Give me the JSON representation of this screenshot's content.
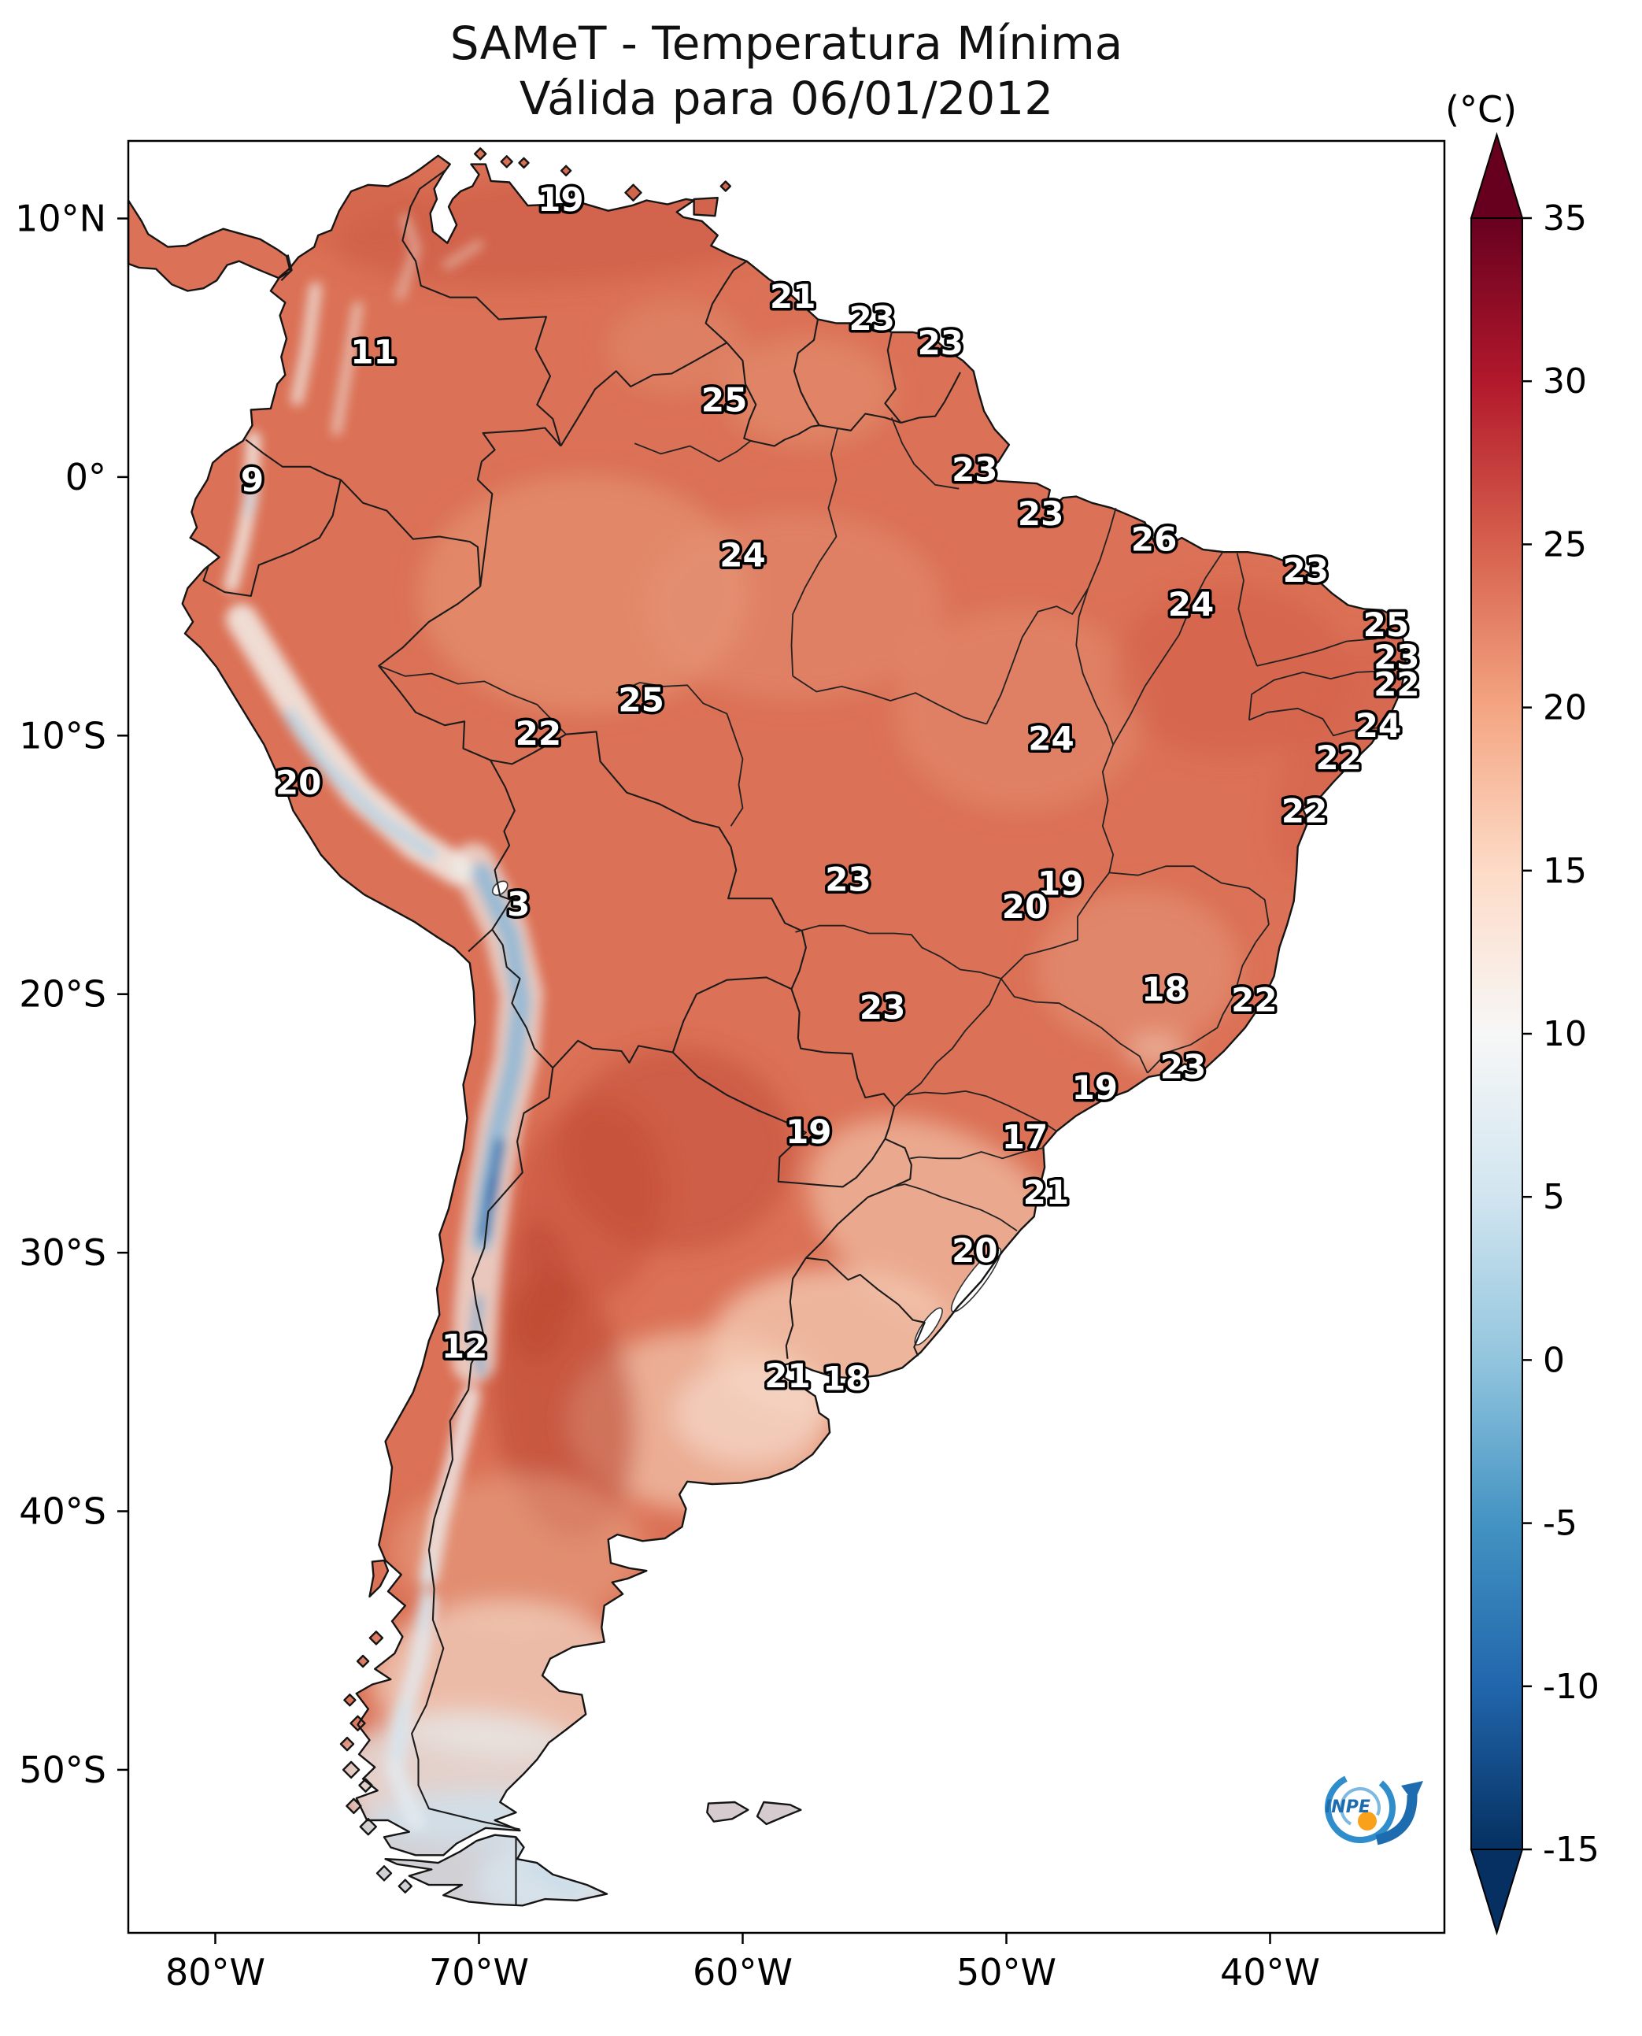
{
  "title": {
    "line1": "SAMeT - Temperatura Mínima",
    "line2": "Válida para 06/01/2012"
  },
  "colorbar": {
    "unit": "(°C)",
    "vmin": -15,
    "vmax": 35,
    "tick_labels": [
      "35",
      "30",
      "25",
      "20",
      "15",
      "10",
      "5",
      "0",
      "-5",
      "-10",
      "-15"
    ],
    "gradient_colors": [
      "#67001f",
      "#b2182b",
      "#d6604d",
      "#f4a582",
      "#fddbc7",
      "#f7f7f7",
      "#d1e5f0",
      "#92c5de",
      "#4393c3",
      "#2166ac",
      "#053061"
    ]
  },
  "axes": {
    "lat_ticks": [
      {
        "label": "10°N",
        "value": 10
      },
      {
        "label": "0°",
        "value": 0
      },
      {
        "label": "10°S",
        "value": -10
      },
      {
        "label": "20°S",
        "value": -20
      },
      {
        "label": "30°S",
        "value": -30
      },
      {
        "label": "40°S",
        "value": -40
      },
      {
        "label": "50°S",
        "value": -50
      }
    ],
    "lon_ticks": [
      {
        "label": "80°W",
        "value": -80
      },
      {
        "label": "70°W",
        "value": -70
      },
      {
        "label": "60°W",
        "value": -60
      },
      {
        "label": "50°W",
        "value": -50
      },
      {
        "label": "40°W",
        "value": -40
      }
    ]
  },
  "stations": [
    {
      "t": "19",
      "lon": -66.9,
      "lat": 10.75
    },
    {
      "t": "21",
      "lon": -58.1,
      "lat": 7.0
    },
    {
      "t": "23",
      "lon": -55.1,
      "lat": 6.15
    },
    {
      "t": "23",
      "lon": -52.5,
      "lat": 5.2
    },
    {
      "t": "11",
      "lon": -74.0,
      "lat": 4.85
    },
    {
      "t": "25",
      "lon": -60.7,
      "lat": 3.0
    },
    {
      "t": "9",
      "lon": -78.6,
      "lat": -0.1
    },
    {
      "t": "23",
      "lon": -51.2,
      "lat": 0.3
    },
    {
      "t": "23",
      "lon": -48.7,
      "lat": -1.4
    },
    {
      "t": "26",
      "lon": -44.4,
      "lat": -2.4
    },
    {
      "t": "24",
      "lon": -60.0,
      "lat": -3.0
    },
    {
      "t": "24",
      "lon": -43.0,
      "lat": -4.9
    },
    {
      "t": "23",
      "lon": -38.65,
      "lat": -3.6
    },
    {
      "t": "25",
      "lon": -35.6,
      "lat": -5.7
    },
    {
      "t": "23",
      "lon": -35.2,
      "lat": -6.95
    },
    {
      "t": "22",
      "lon": -35.2,
      "lat": -8.0
    },
    {
      "t": "25",
      "lon": -63.85,
      "lat": -8.6
    },
    {
      "t": "22",
      "lon": -67.75,
      "lat": -9.9
    },
    {
      "t": "24",
      "lon": -35.9,
      "lat": -9.6
    },
    {
      "t": "24",
      "lon": -48.3,
      "lat": -10.1
    },
    {
      "t": "22",
      "lon": -37.4,
      "lat": -10.85
    },
    {
      "t": "20",
      "lon": -76.85,
      "lat": -11.8
    },
    {
      "t": "22",
      "lon": -38.7,
      "lat": -12.9
    },
    {
      "t": "3",
      "lon": -68.5,
      "lat": -16.5
    },
    {
      "t": "23",
      "lon": -56.0,
      "lat": -15.55
    },
    {
      "t": "19",
      "lon": -47.95,
      "lat": -15.7
    },
    {
      "t": "20",
      "lon": -49.3,
      "lat": -16.6
    },
    {
      "t": "18",
      "lon": -44.0,
      "lat": -19.8
    },
    {
      "t": "22",
      "lon": -40.6,
      "lat": -20.2
    },
    {
      "t": "23",
      "lon": -54.7,
      "lat": -20.5
    },
    {
      "t": "23",
      "lon": -43.3,
      "lat": -22.8
    },
    {
      "t": "19",
      "lon": -46.65,
      "lat": -23.6
    },
    {
      "t": "19",
      "lon": -57.5,
      "lat": -25.3
    },
    {
      "t": "17",
      "lon": -49.3,
      "lat": -25.5
    },
    {
      "t": "21",
      "lon": -48.5,
      "lat": -27.65
    },
    {
      "t": "12",
      "lon": -70.55,
      "lat": -33.6
    },
    {
      "t": "20",
      "lon": -51.2,
      "lat": -29.9
    },
    {
      "t": "21",
      "lon": -58.3,
      "lat": -34.75
    },
    {
      "t": "18",
      "lon": -56.1,
      "lat": -34.85
    }
  ],
  "logo": {
    "text": "INPE"
  },
  "map_colors": {
    "land_base": "#DB7156",
    "ocean": "#ffffff",
    "coast": "#151515",
    "border": "#1c1c1c"
  }
}
